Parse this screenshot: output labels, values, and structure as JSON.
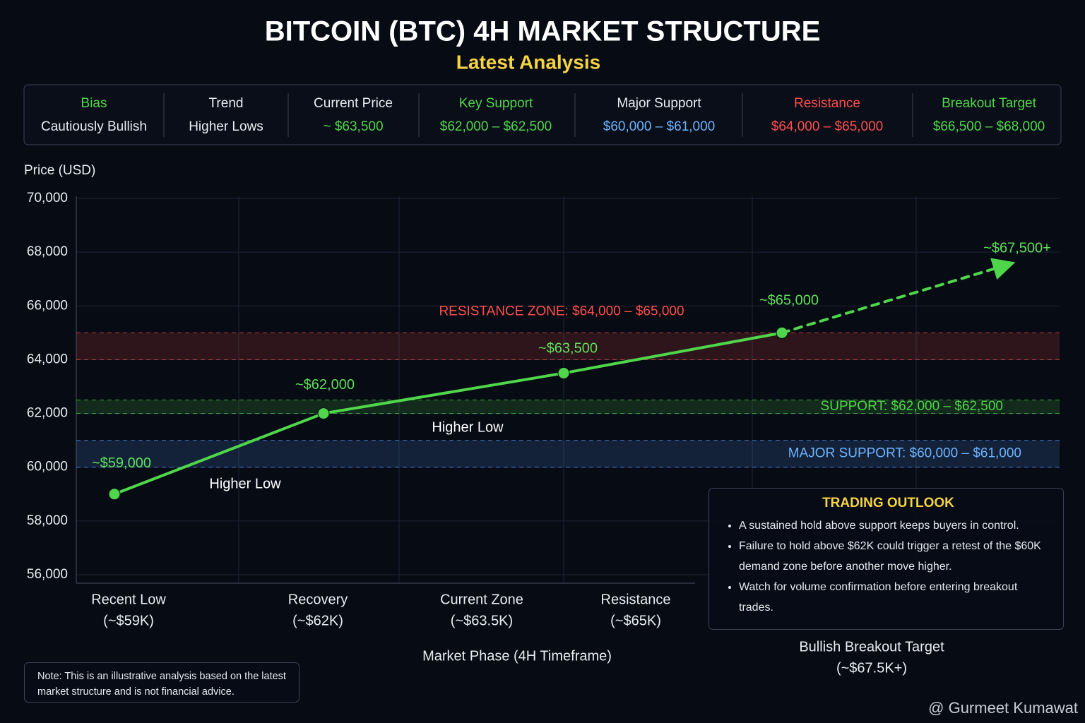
{
  "header": {
    "title": "BITCOIN (BTC) 4H MARKET STRUCTURE",
    "subtitle": "Latest Analysis"
  },
  "summary": [
    {
      "label": "Bias",
      "value": "Cautiously Bullish",
      "label_color": "#4fd64a",
      "value_color": "#e8ecf2"
    },
    {
      "label": "Trend",
      "value": "Higher Lows",
      "label_color": "#e8ecf2",
      "value_color": "#e8ecf2"
    },
    {
      "label": "Current Price",
      "value": "~ $63,500",
      "label_color": "#e8ecf2",
      "value_color": "#4fd64a"
    },
    {
      "label": "Key Support",
      "value": "$62,000 – $62,500",
      "label_color": "#4fd64a",
      "value_color": "#4fd64a"
    },
    {
      "label": "Major Support",
      "value": "$60,000 – $61,000",
      "label_color": "#e8ecf2",
      "value_color": "#6db3ff"
    },
    {
      "label": "Resistance",
      "value": "$64,000 – $65,000",
      "label_color": "#ff4d4d",
      "value_color": "#ff4d4d"
    },
    {
      "label": "Breakout Target",
      "value": "$66,500 – $68,000",
      "label_color": "#4fd64a",
      "value_color": "#4fd64a"
    }
  ],
  "chart_data": {
    "type": "line",
    "y_label": "Price (USD)",
    "x_label": "Market Phase (4H Timeframe)",
    "categories": [
      "Recent Low",
      "Recovery",
      "Current Zone",
      "Resistance",
      "Bullish Breakout Target"
    ],
    "category_notes": [
      "(~$59K)",
      "(~$62K)",
      "(~$63.5K)",
      "(~$65K)",
      "(~$67.5K+)"
    ],
    "ylim": [
      56000,
      70000
    ],
    "yticks": [
      {
        "value": 56000,
        "label": "56,000"
      },
      {
        "value": 58000,
        "label": "58,000"
      },
      {
        "value": 60000,
        "label": "60,000"
      },
      {
        "value": 62000,
        "label": "62,000"
      },
      {
        "value": 64000,
        "label": "64,000"
      },
      {
        "value": 66000,
        "label": "66,000"
      },
      {
        "value": 68000,
        "label": "68,000"
      },
      {
        "value": 70000,
        "label": "70,000"
      }
    ],
    "grid": true,
    "series": [
      {
        "color": "#4fd64a",
        "style": "solid",
        "values": [
          59000,
          62000,
          63500,
          65000,
          null
        ],
        "value_labels": [
          "~$59,000",
          "~$62,000",
          "~$63,500",
          "~$65,000",
          null
        ]
      },
      {
        "color": "#4fd64a",
        "style": "dashed",
        "values": [
          null,
          null,
          null,
          65000,
          67500
        ],
        "value_labels": [
          null,
          null,
          null,
          null,
          "~$67,500+"
        ]
      }
    ],
    "bands": [
      {
        "label": "RESISTANCE ZONE: $64,000 – $65,000",
        "range": [
          64000,
          65000
        ],
        "color": "#ff4d4d"
      },
      {
        "label": "SUPPORT: $62,000 – $62,500",
        "range": [
          62000,
          62500
        ],
        "color": "#4fd64a"
      },
      {
        "label": "MAJOR SUPPORT: $60,000 – $61,000",
        "range": [
          60000,
          61000
        ],
        "color": "#5a9cff"
      }
    ],
    "annotations": [
      "Higher Low",
      "Higher Low"
    ]
  },
  "outlook": {
    "title": "TRADING OUTLOOK",
    "bullets": [
      "A sustained hold above support keeps buyers in control.",
      "Failure to hold above $62K could trigger a retest of the $60K demand zone before another move higher.",
      "Watch for volume confirmation before entering breakout trades."
    ]
  },
  "note": "Note: This is an illustrative analysis based on the latest market structure and is not financial advice.",
  "watermark": "@ Gurmeet Kumawat"
}
